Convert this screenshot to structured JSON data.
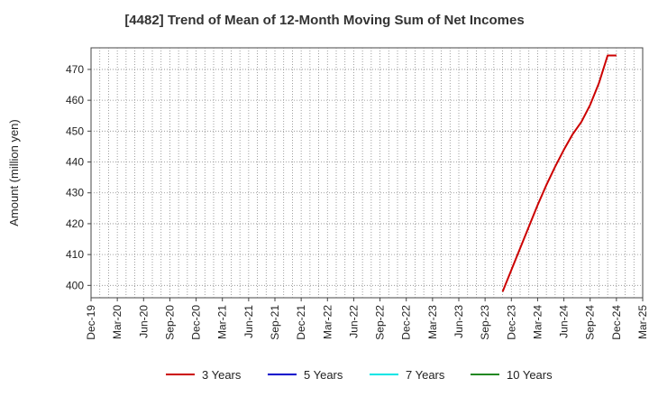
{
  "chart_data": {
    "type": "line",
    "title": "[4482]  Trend of Mean of 12-Month Moving Sum of Net Incomes",
    "xlabel": "",
    "ylabel": "Amount (million yen)",
    "ylim": [
      396,
      477
    ],
    "yticks": [
      400,
      410,
      420,
      430,
      440,
      450,
      460,
      470
    ],
    "categories": [
      "Dec-19",
      "Mar-20",
      "Jun-20",
      "Sep-20",
      "Dec-20",
      "Mar-21",
      "Jun-21",
      "Sep-21",
      "Dec-21",
      "Mar-22",
      "Jun-22",
      "Sep-22",
      "Dec-22",
      "Mar-23",
      "Jun-23",
      "Sep-23",
      "Dec-23",
      "Mar-24",
      "Jun-24",
      "Sep-24",
      "Dec-24",
      "Mar-25"
    ],
    "grid": true,
    "legend_position": "bottom",
    "series": [
      {
        "name": "3 Years",
        "color": "#cc0000",
        "x": [
          "Nov-23",
          "Dec-23",
          "Jan-24",
          "Feb-24",
          "Mar-24",
          "Apr-24",
          "May-24",
          "Jun-24",
          "Jul-24",
          "Aug-24",
          "Sep-24",
          "Oct-24",
          "Nov-24",
          "Dec-24"
        ],
        "values": [
          398,
          405,
          412,
          419,
          426,
          432.5,
          438.5,
          444,
          449,
          453,
          458.5,
          465.5,
          474.5,
          474.5
        ]
      },
      {
        "name": "5 Years",
        "color": "#0000cc",
        "x": [],
        "values": []
      },
      {
        "name": "7 Years",
        "color": "#00e5e5",
        "x": [],
        "values": []
      },
      {
        "name": "10 Years",
        "color": "#228822",
        "x": [],
        "values": []
      }
    ]
  }
}
